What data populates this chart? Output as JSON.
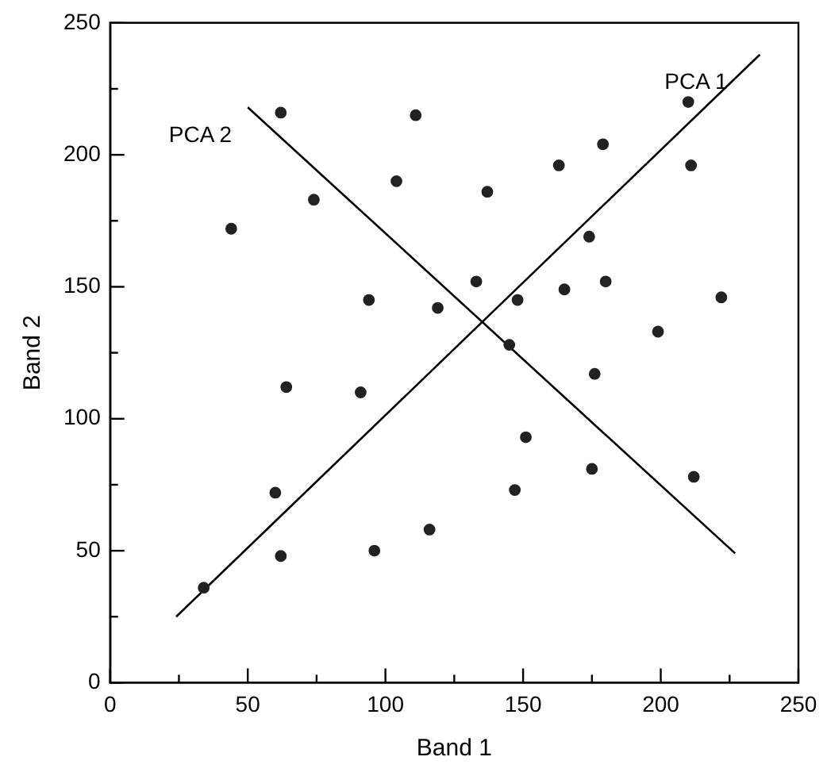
{
  "chart_data": {
    "type": "scatter",
    "xlabel": "Band 1",
    "ylabel": "Band 2",
    "xlim": [
      0,
      250
    ],
    "ylim": [
      0,
      250
    ],
    "xticks": [
      0,
      {
        "value": 25,
        "label": null
      },
      50,
      {
        "value": 75,
        "label": null
      },
      100,
      {
        "value": 125,
        "label": null
      },
      150,
      {
        "value": 175,
        "label": null
      },
      200,
      {
        "value": 225,
        "label": null
      },
      250
    ],
    "yticks": [
      0,
      {
        "value": 25,
        "label": null
      },
      50,
      {
        "value": 75,
        "label": null
      },
      100,
      {
        "value": 125,
        "label": null
      },
      150,
      {
        "value": 175,
        "label": null
      },
      200,
      {
        "value": 225,
        "label": null
      },
      250
    ],
    "grid": false,
    "legend": false,
    "marker": "circle",
    "series": [
      {
        "color": "#222222",
        "x": [
          62,
          111,
          104,
          74,
          44,
          94,
          119,
          210,
          179,
          163,
          211,
          137,
          174,
          133,
          148,
          165,
          180,
          222,
          145,
          199,
          64,
          91,
          60,
          62,
          96,
          116,
          34,
          176,
          151,
          175,
          147,
          212
        ],
        "values": [
          216,
          215,
          190,
          183,
          172,
          145,
          142,
          220,
          204,
          196,
          196,
          186,
          169,
          152,
          145,
          149,
          152,
          146,
          128,
          133,
          112,
          110,
          72,
          48,
          50,
          58,
          36,
          117,
          93,
          81,
          73,
          78
        ]
      },
      {
        "type": "line",
        "name": "PCA 1",
        "color": "#000000",
        "marker": "none",
        "x": [
          24,
          236
        ],
        "values": [
          25,
          238
        ]
      },
      {
        "type": "line",
        "name": "PCA 2",
        "color": "#000000",
        "marker": "none",
        "x": [
          50,
          227
        ],
        "values": [
          218,
          49
        ]
      }
    ]
  }
}
